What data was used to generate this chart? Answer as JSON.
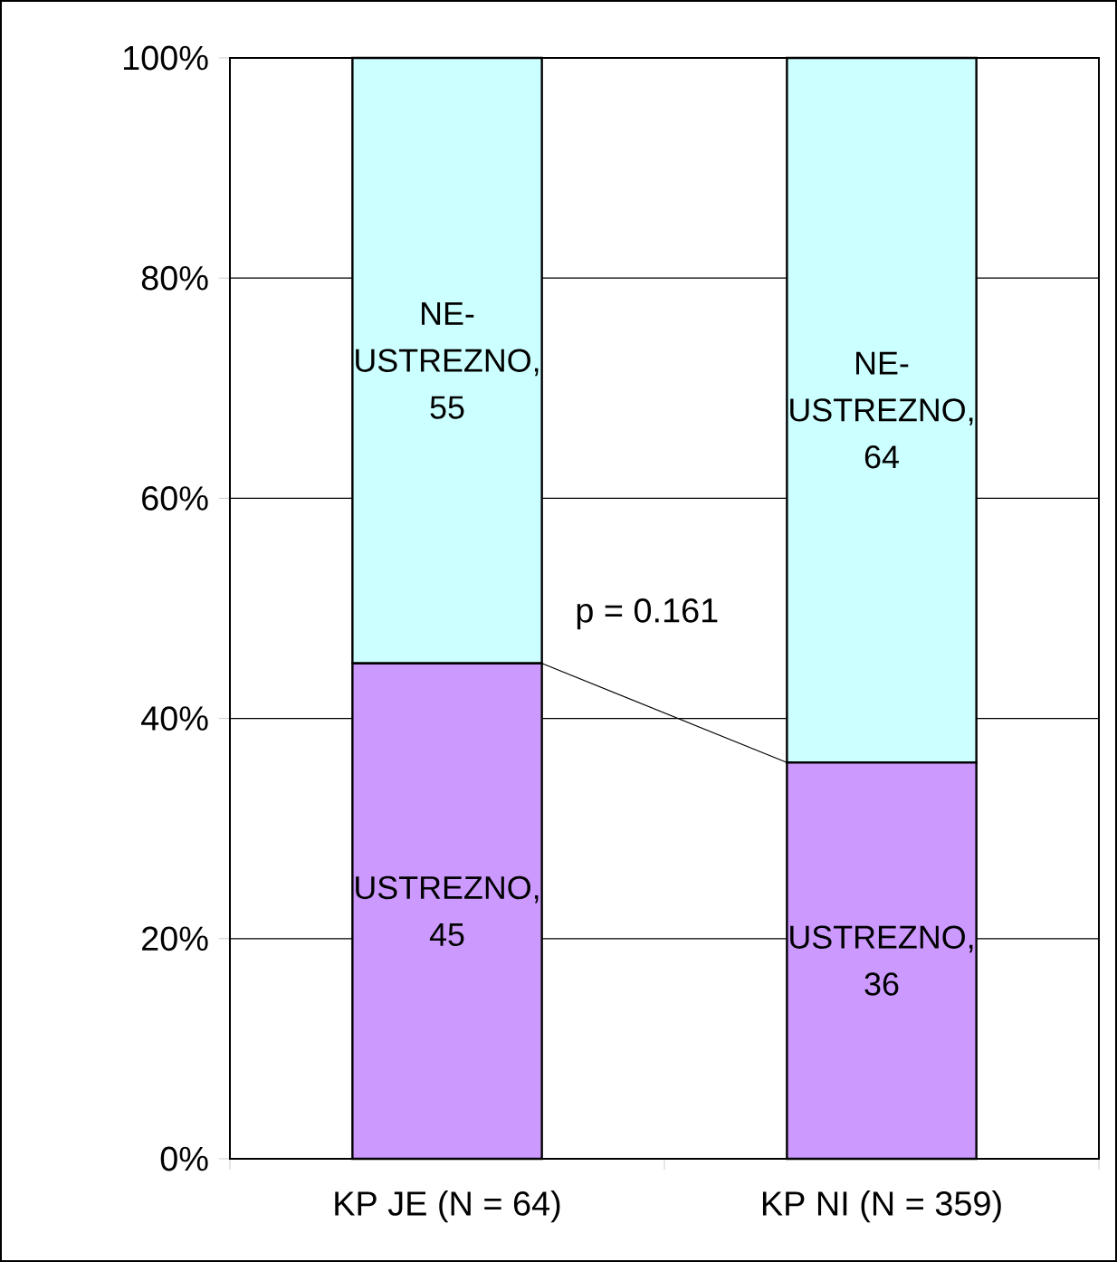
{
  "chart_data": {
    "type": "bar",
    "stacked": true,
    "categories": [
      "KP JE (N = 64)",
      "KP NI (N = 359)"
    ],
    "series": [
      {
        "color": "#cc99ff",
        "values": [
          45,
          36
        ],
        "value_labels": [
          "USTREZNO, 45",
          "USTREZNO, 36"
        ]
      },
      {
        "color": "#ccffff",
        "values": [
          55,
          64
        ],
        "value_labels": [
          "NE-USTREZNO, 55",
          "NE-USTREZNO, 64"
        ]
      }
    ],
    "ylim": [
      0,
      100
    ],
    "yticks": [
      {
        "value": 0,
        "label": "0%"
      },
      {
        "value": 20,
        "label": "20%"
      },
      {
        "value": 40,
        "label": "40%"
      },
      {
        "value": 60,
        "label": "60%"
      },
      {
        "value": 80,
        "label": "80%"
      },
      {
        "value": 100,
        "label": "100%"
      }
    ],
    "grid": "y",
    "annotations": [
      "p = 0.161"
    ]
  }
}
